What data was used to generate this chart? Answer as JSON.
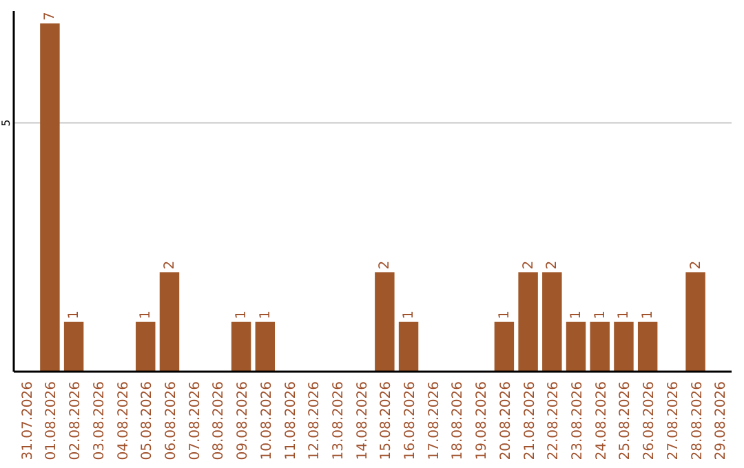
{
  "chart_data": {
    "type": "bar",
    "categories": [
      "31.07.2026",
      "01.08.2026",
      "02.08.2026",
      "03.08.2026",
      "04.08.2026",
      "05.08.2026",
      "06.08.2026",
      "07.08.2026",
      "08.08.2026",
      "09.08.2026",
      "10.08.2026",
      "11.08.2026",
      "12.08.2026",
      "13.08.2026",
      "14.08.2026",
      "15.08.2026",
      "16.08.2026",
      "17.08.2026",
      "18.08.2026",
      "19.08.2026",
      "20.08.2026",
      "21.08.2026",
      "22.08.2026",
      "23.08.2026",
      "24.08.2026",
      "25.08.2026",
      "26.08.2026",
      "27.08.2026",
      "28.08.2026",
      "29.08.2026"
    ],
    "values": [
      0,
      7,
      1,
      0,
      0,
      1,
      2,
      0,
      0,
      1,
      1,
      0,
      0,
      0,
      0,
      2,
      1,
      0,
      0,
      0,
      1,
      2,
      2,
      1,
      1,
      1,
      1,
      0,
      2,
      0
    ],
    "value_labels": [
      null,
      "7",
      "1",
      null,
      null,
      "1",
      "2",
      null,
      null,
      "1",
      "1",
      null,
      null,
      null,
      null,
      "2",
      "1",
      null,
      null,
      null,
      "1",
      "2",
      "2",
      "1",
      "1",
      "1",
      "1",
      null,
      "2",
      null
    ],
    "color": "#a0582a",
    "ylim": [
      0,
      7.25
    ],
    "yticks": [
      5
    ],
    "grid": "y"
  }
}
